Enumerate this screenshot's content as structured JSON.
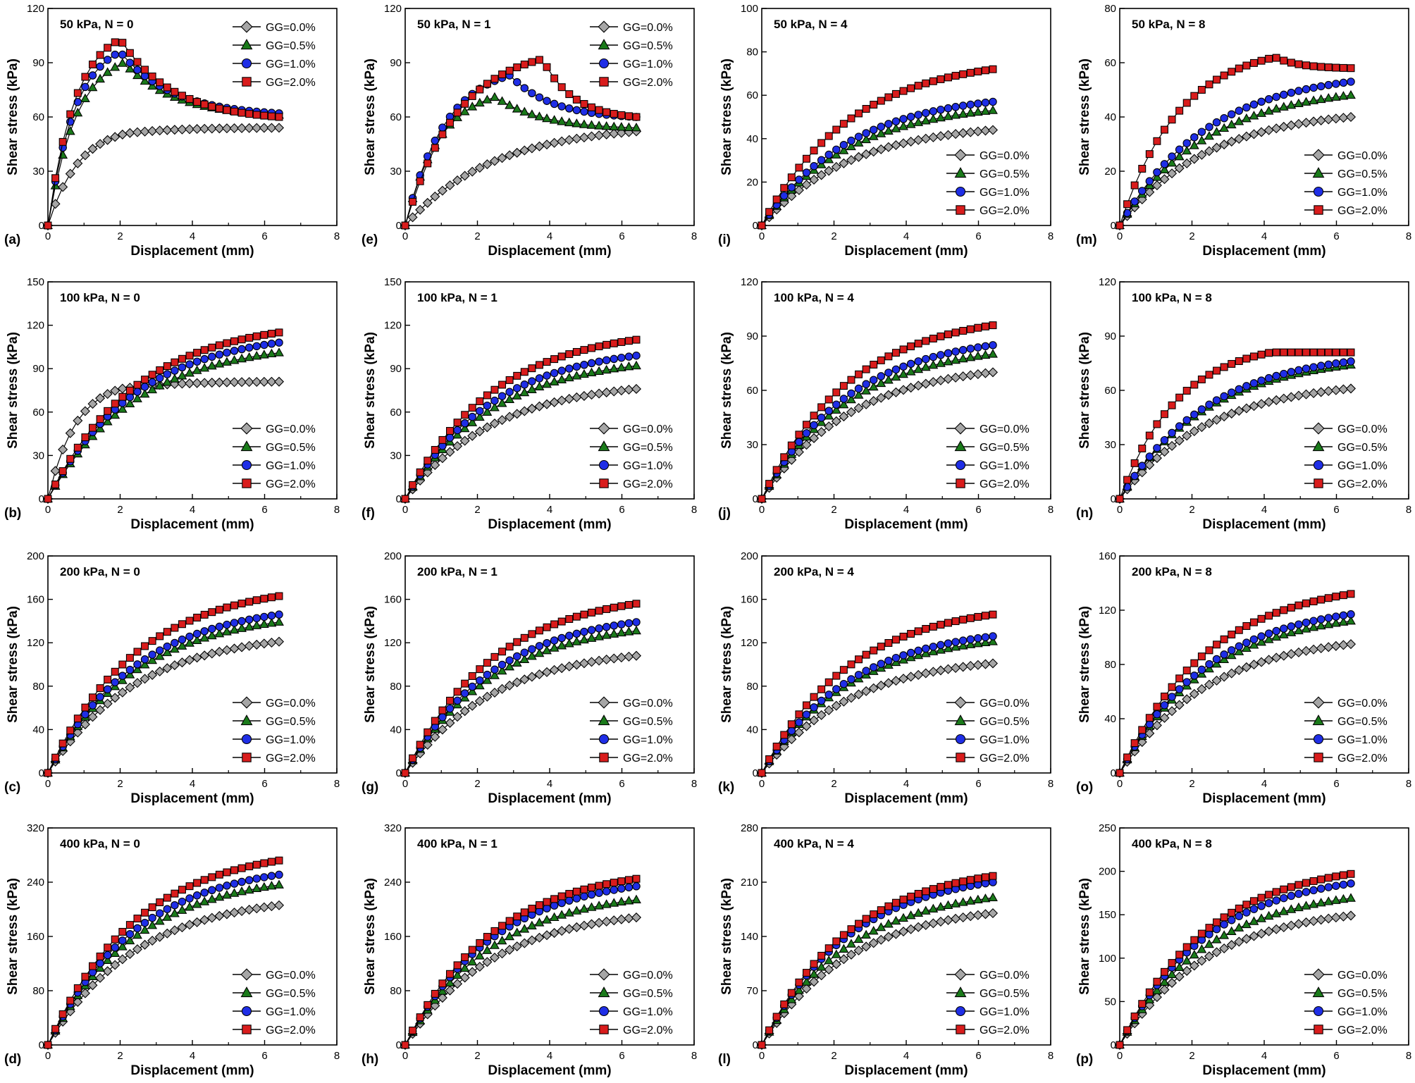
{
  "figure": {
    "xlabel": "Displacement (mm)",
    "ylabel": "Shear stress (kPa)",
    "legend_labels": [
      "GG=0.0%",
      "GG=0.5%",
      "GG=1.0%",
      "GG=2.0%"
    ],
    "series_colors": [
      "#a6a6a6",
      "#1a7a1a",
      "#1f2ee6",
      "#d91c1c"
    ],
    "series_markers": [
      "diamond",
      "triangle",
      "circle",
      "square"
    ],
    "xlim": [
      0,
      8
    ],
    "xticks": [
      0,
      2,
      4,
      6,
      8
    ]
  },
  "chart_data": [
    {
      "panel": "(a)",
      "title": "50 kPa, N = 0",
      "type": "line",
      "ylim": [
        0,
        120
      ],
      "yticks": [
        0,
        30,
        60,
        90,
        120
      ],
      "legend": "top-right",
      "series": [
        {
          "name": "GG=0.0%",
          "peak_x": 2.2,
          "peak_y": 51,
          "end_y": 54
        },
        {
          "name": "GG=0.5%",
          "peak_x": 2.1,
          "peak_y": 90,
          "end_y": 61
        },
        {
          "name": "GG=1.0%",
          "peak_x": 2.0,
          "peak_y": 96,
          "end_y": 62
        },
        {
          "name": "GG=2.0%",
          "peak_x": 2.0,
          "peak_y": 103,
          "end_y": 60
        }
      ]
    },
    {
      "panel": "(b)",
      "title": "100 kPa, N = 0",
      "type": "line",
      "ylim": [
        0,
        150
      ],
      "yticks": [
        0,
        30,
        60,
        90,
        120,
        150
      ],
      "legend": "bottom-right",
      "series": [
        {
          "name": "GG=0.0%",
          "peak_x": 2.0,
          "peak_y": 76,
          "end_y": 81
        },
        {
          "name": "GG=0.5%",
          "peak_x": 6.4,
          "peak_y": 101,
          "end_y": 101
        },
        {
          "name": "GG=1.0%",
          "peak_x": 6.4,
          "peak_y": 108,
          "end_y": 108
        },
        {
          "name": "GG=2.0%",
          "peak_x": 6.4,
          "peak_y": 115,
          "end_y": 115
        }
      ]
    },
    {
      "panel": "(c)",
      "title": "200 kPa, N = 0",
      "type": "line",
      "ylim": [
        0,
        200
      ],
      "yticks": [
        0,
        40,
        80,
        120,
        160,
        200
      ],
      "legend": "bottom-right",
      "series": [
        {
          "name": "GG=0.0%",
          "peak_x": 6.4,
          "peak_y": 121,
          "end_y": 121
        },
        {
          "name": "GG=0.5%",
          "peak_x": 6.4,
          "peak_y": 139,
          "end_y": 139
        },
        {
          "name": "GG=1.0%",
          "peak_x": 6.4,
          "peak_y": 146,
          "end_y": 146
        },
        {
          "name": "GG=2.0%",
          "peak_x": 6.4,
          "peak_y": 163,
          "end_y": 163
        }
      ]
    },
    {
      "panel": "(d)",
      "title": "400 kPa, N = 0",
      "type": "line",
      "ylim": [
        0,
        320
      ],
      "yticks": [
        0,
        80,
        160,
        240,
        320
      ],
      "legend": "bottom-right",
      "series": [
        {
          "name": "GG=0.0%",
          "peak_x": 6.4,
          "peak_y": 206,
          "end_y": 206
        },
        {
          "name": "GG=0.5%",
          "peak_x": 6.4,
          "peak_y": 236,
          "end_y": 236
        },
        {
          "name": "GG=1.0%",
          "peak_x": 6.4,
          "peak_y": 251,
          "end_y": 251
        },
        {
          "name": "GG=2.0%",
          "peak_x": 6.4,
          "peak_y": 272,
          "end_y": 272
        }
      ]
    },
    {
      "panel": "(e)",
      "title": "50 kPa, N = 1",
      "type": "line",
      "ylim": [
        0,
        120
      ],
      "yticks": [
        0,
        30,
        60,
        90,
        120
      ],
      "legend": "top-right",
      "series": [
        {
          "name": "GG=0.0%",
          "peak_x": 6.4,
          "peak_y": 52,
          "end_y": 52
        },
        {
          "name": "GG=0.5%",
          "peak_x": 2.5,
          "peak_y": 71,
          "end_y": 54
        },
        {
          "name": "GG=1.0%",
          "peak_x": 2.9,
          "peak_y": 83,
          "end_y": 60
        },
        {
          "name": "GG=2.0%",
          "peak_x": 3.8,
          "peak_y": 92,
          "end_y": 60
        }
      ]
    },
    {
      "panel": "(f)",
      "title": "100 kPa, N = 1",
      "type": "line",
      "ylim": [
        0,
        150
      ],
      "yticks": [
        0,
        30,
        60,
        90,
        120,
        150
      ],
      "legend": "bottom-right",
      "series": [
        {
          "name": "GG=0.0%",
          "peak_x": 6.4,
          "peak_y": 76,
          "end_y": 76
        },
        {
          "name": "GG=0.5%",
          "peak_x": 6.4,
          "peak_y": 92,
          "end_y": 92
        },
        {
          "name": "GG=1.0%",
          "peak_x": 6.4,
          "peak_y": 99,
          "end_y": 99
        },
        {
          "name": "GG=2.0%",
          "peak_x": 6.4,
          "peak_y": 110,
          "end_y": 110
        }
      ]
    },
    {
      "panel": "(g)",
      "title": "200 kPa, N = 1",
      "type": "line",
      "ylim": [
        0,
        200
      ],
      "yticks": [
        0,
        40,
        80,
        120,
        160,
        200
      ],
      "legend": "bottom-right",
      "series": [
        {
          "name": "GG=0.0%",
          "peak_x": 6.4,
          "peak_y": 108,
          "end_y": 108
        },
        {
          "name": "GG=0.5%",
          "peak_x": 6.4,
          "peak_y": 131,
          "end_y": 131
        },
        {
          "name": "GG=1.0%",
          "peak_x": 6.4,
          "peak_y": 139,
          "end_y": 139
        },
        {
          "name": "GG=2.0%",
          "peak_x": 6.4,
          "peak_y": 156,
          "end_y": 156
        }
      ]
    },
    {
      "panel": "(h)",
      "title": "400 kPa, N = 1",
      "type": "line",
      "ylim": [
        0,
        320
      ],
      "yticks": [
        0,
        80,
        160,
        240,
        320
      ],
      "legend": "bottom-right",
      "series": [
        {
          "name": "GG=0.0%",
          "peak_x": 6.4,
          "peak_y": 188,
          "end_y": 188
        },
        {
          "name": "GG=0.5%",
          "peak_x": 6.4,
          "peak_y": 214,
          "end_y": 214
        },
        {
          "name": "GG=1.0%",
          "peak_x": 6.4,
          "peak_y": 234,
          "end_y": 234
        },
        {
          "name": "GG=2.0%",
          "peak_x": 6.4,
          "peak_y": 245,
          "end_y": 245
        }
      ]
    },
    {
      "panel": "(i)",
      "title": "50 kPa, N = 4",
      "type": "line",
      "ylim": [
        0,
        100
      ],
      "yticks": [
        0,
        20,
        40,
        60,
        80,
        100
      ],
      "legend": "bottom-right",
      "series": [
        {
          "name": "GG=0.0%",
          "peak_x": 6.4,
          "peak_y": 44,
          "end_y": 44
        },
        {
          "name": "GG=0.5%",
          "peak_x": 6.4,
          "peak_y": 53,
          "end_y": 53
        },
        {
          "name": "GG=1.0%",
          "peak_x": 6.4,
          "peak_y": 57,
          "end_y": 57
        },
        {
          "name": "GG=2.0%",
          "peak_x": 6.4,
          "peak_y": 72,
          "end_y": 72
        }
      ]
    },
    {
      "panel": "(j)",
      "title": "100 kPa, N = 4",
      "type": "line",
      "ylim": [
        0,
        120
      ],
      "yticks": [
        0,
        30,
        60,
        90,
        120
      ],
      "legend": "bottom-right",
      "series": [
        {
          "name": "GG=0.0%",
          "peak_x": 6.4,
          "peak_y": 70,
          "end_y": 70
        },
        {
          "name": "GG=0.5%",
          "peak_x": 6.4,
          "peak_y": 80,
          "end_y": 80
        },
        {
          "name": "GG=1.0%",
          "peak_x": 6.4,
          "peak_y": 85,
          "end_y": 85
        },
        {
          "name": "GG=2.0%",
          "peak_x": 6.4,
          "peak_y": 96,
          "end_y": 96
        }
      ]
    },
    {
      "panel": "(k)",
      "title": "200 kPa, N = 4",
      "type": "line",
      "ylim": [
        0,
        200
      ],
      "yticks": [
        0,
        40,
        80,
        120,
        160,
        200
      ],
      "legend": "bottom-right",
      "series": [
        {
          "name": "GG=0.0%",
          "peak_x": 6.4,
          "peak_y": 101,
          "end_y": 101
        },
        {
          "name": "GG=0.5%",
          "peak_x": 6.4,
          "peak_y": 121,
          "end_y": 121
        },
        {
          "name": "GG=1.0%",
          "peak_x": 6.4,
          "peak_y": 126,
          "end_y": 126
        },
        {
          "name": "GG=2.0%",
          "peak_x": 6.4,
          "peak_y": 146,
          "end_y": 146
        }
      ]
    },
    {
      "panel": "(l)",
      "title": "400 kPa, N = 4",
      "type": "line",
      "ylim": [
        0,
        280
      ],
      "yticks": [
        0,
        70,
        140,
        210,
        280
      ],
      "legend": "bottom-right",
      "series": [
        {
          "name": "GG=0.0%",
          "peak_x": 6.4,
          "peak_y": 170,
          "end_y": 170
        },
        {
          "name": "GG=0.5%",
          "peak_x": 6.4,
          "peak_y": 190,
          "end_y": 190
        },
        {
          "name": "GG=1.0%",
          "peak_x": 6.4,
          "peak_y": 210,
          "end_y": 210
        },
        {
          "name": "GG=2.0%",
          "peak_x": 6.4,
          "peak_y": 218,
          "end_y": 218
        }
      ]
    },
    {
      "panel": "(m)",
      "title": "50 kPa, N = 8",
      "type": "line",
      "ylim": [
        0,
        80
      ],
      "yticks": [
        0,
        20,
        40,
        60,
        80
      ],
      "legend": "bottom-right",
      "series": [
        {
          "name": "GG=0.0%",
          "peak_x": 6.4,
          "peak_y": 40,
          "end_y": 40
        },
        {
          "name": "GG=0.5%",
          "peak_x": 6.4,
          "peak_y": 48,
          "end_y": 48
        },
        {
          "name": "GG=1.0%",
          "peak_x": 6.4,
          "peak_y": 53,
          "end_y": 53
        },
        {
          "name": "GG=2.0%",
          "peak_x": 4.3,
          "peak_y": 62,
          "end_y": 58
        }
      ]
    },
    {
      "panel": "(n)",
      "title": "100 kPa, N = 8",
      "type": "line",
      "ylim": [
        0,
        120
      ],
      "yticks": [
        0,
        30,
        60,
        90,
        120
      ],
      "legend": "bottom-right",
      "series": [
        {
          "name": "GG=0.0%",
          "peak_x": 6.4,
          "peak_y": 61,
          "end_y": 61
        },
        {
          "name": "GG=0.5%",
          "peak_x": 6.4,
          "peak_y": 74,
          "end_y": 74
        },
        {
          "name": "GG=1.0%",
          "peak_x": 6.4,
          "peak_y": 76,
          "end_y": 76
        },
        {
          "name": "GG=2.0%",
          "peak_x": 4.2,
          "peak_y": 81,
          "end_y": 81
        }
      ]
    },
    {
      "panel": "(o)",
      "title": "200 kPa, N = 8",
      "type": "line",
      "ylim": [
        0,
        160
      ],
      "yticks": [
        0,
        40,
        80,
        120,
        160
      ],
      "legend": "bottom-right",
      "series": [
        {
          "name": "GG=0.0%",
          "peak_x": 6.4,
          "peak_y": 95,
          "end_y": 95
        },
        {
          "name": "GG=0.5%",
          "peak_x": 6.4,
          "peak_y": 112,
          "end_y": 112
        },
        {
          "name": "GG=1.0%",
          "peak_x": 6.4,
          "peak_y": 117,
          "end_y": 117
        },
        {
          "name": "GG=2.0%",
          "peak_x": 6.4,
          "peak_y": 132,
          "end_y": 132
        }
      ]
    },
    {
      "panel": "(p)",
      "title": "400 kPa, N = 8",
      "type": "line",
      "ylim": [
        0,
        250
      ],
      "yticks": [
        0,
        50,
        100,
        150,
        200,
        250
      ],
      "legend": "bottom-right",
      "series": [
        {
          "name": "GG=0.0%",
          "peak_x": 6.4,
          "peak_y": 149,
          "end_y": 149
        },
        {
          "name": "GG=0.5%",
          "peak_x": 6.4,
          "peak_y": 169,
          "end_y": 169
        },
        {
          "name": "GG=1.0%",
          "peak_x": 6.4,
          "peak_y": 186,
          "end_y": 186
        },
        {
          "name": "GG=2.0%",
          "peak_x": 6.4,
          "peak_y": 197,
          "end_y": 197
        }
      ]
    }
  ]
}
